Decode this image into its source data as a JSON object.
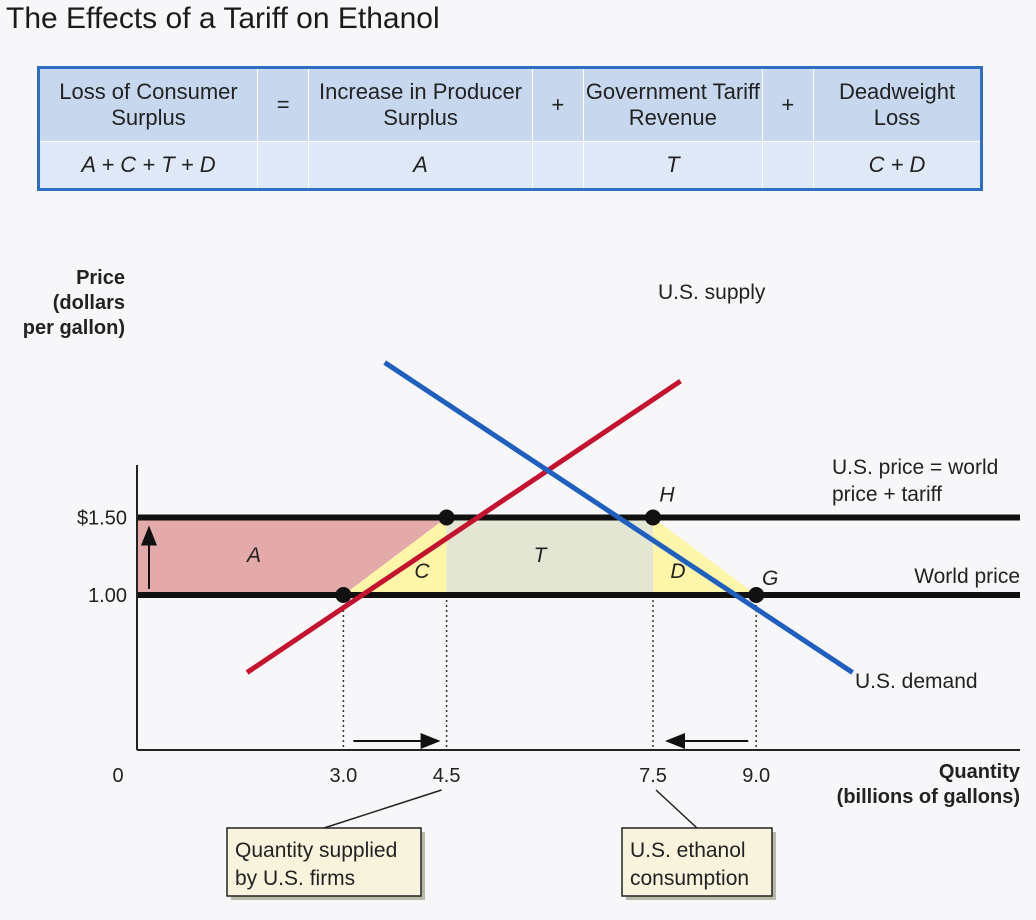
{
  "title": "The Effects of a Tariff on Ethanol",
  "summary_table": {
    "headers": [
      "Loss of Consumer Surplus",
      "=",
      "Increase in Producer Surplus",
      "+",
      "Government Tariff Revenue",
      "+",
      "Deadweight Loss"
    ],
    "values": [
      "A + C + T + D",
      "",
      "A",
      "",
      "T",
      "",
      "C + D"
    ]
  },
  "chart_data": {
    "type": "line",
    "ylabel": "Price (dollars per gallon)",
    "xlabel": "Quantity (billions of gallons)",
    "origin_label": "0",
    "x_ticks": [
      {
        "value": 3.0,
        "label": "3.0"
      },
      {
        "value": 4.5,
        "label": "4.5"
      },
      {
        "value": 7.5,
        "label": "7.5"
      },
      {
        "value": 9.0,
        "label": "9.0"
      }
    ],
    "y_ticks": [
      {
        "value": 1.5,
        "label": "$1.50"
      },
      {
        "value": 1.0,
        "label": "1.00"
      }
    ],
    "xlim": [
      0,
      12.7
    ],
    "ylim": [
      0,
      3.0
    ],
    "series": [
      {
        "name": "U.S. supply",
        "color": "#c4122f",
        "x": [
          1.6,
          7.9
        ],
        "y": [
          0.5,
          2.38
        ]
      },
      {
        "name": "U.S. demand",
        "color": "#1f5fbf",
        "x": [
          3.6,
          10.4
        ],
        "y": [
          2.5,
          0.5
        ]
      }
    ],
    "hlines": [
      {
        "label": "U.S. price = world price + tariff",
        "y": 1.5
      },
      {
        "label": "World price",
        "y": 1.0
      }
    ],
    "regions": [
      {
        "label": "A",
        "color": "#e4aaaa"
      },
      {
        "label": "C",
        "color": "#fdf6a8"
      },
      {
        "label": "T",
        "color": "#e2e6d3"
      },
      {
        "label": "D",
        "color": "#fdf6a8"
      }
    ],
    "points": [
      {
        "x": 3.0,
        "y": 1.0
      },
      {
        "x": 4.5,
        "y": 1.5
      },
      {
        "x": 7.5,
        "y": 1.5,
        "label": "H"
      },
      {
        "x": 9.0,
        "y": 1.0,
        "label": "G"
      }
    ],
    "callouts": [
      "Quantity supplied by U.S. firms",
      "U.S. ethanol consumption"
    ]
  }
}
